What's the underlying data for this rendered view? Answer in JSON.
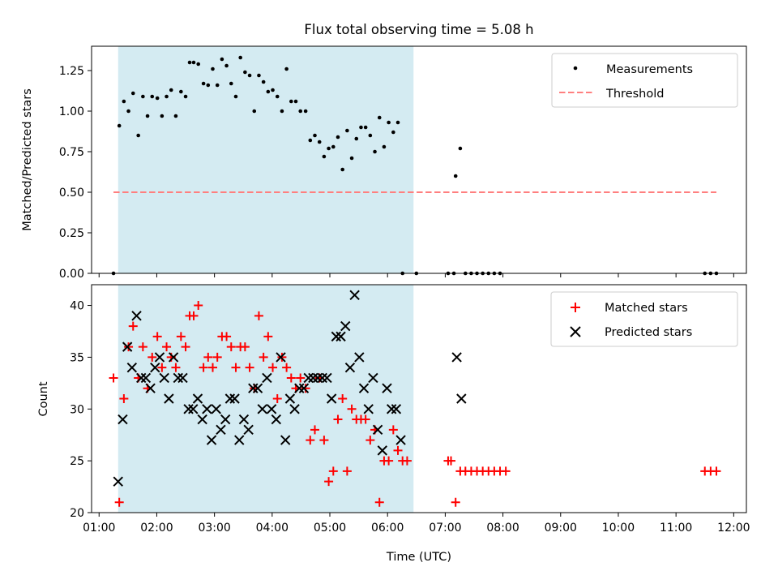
{
  "title": "Flux total observing time = 5.08 h",
  "colors": {
    "band": "#add8e6",
    "measure": "#000000",
    "threshold": "#ff7f7f",
    "matched": "#ff0000",
    "predicted": "#000000"
  },
  "chart_data": [
    {
      "type": "scatter",
      "ylabel": "Matched/Predicted stars",
      "xlim": [
        0.87,
        12.22
      ],
      "ylim": [
        0.0,
        1.4
      ],
      "yticks": [
        0.0,
        0.25,
        0.5,
        0.75,
        1.0,
        1.25
      ],
      "ytick_labels": [
        "0.00",
        "0.25",
        "0.50",
        "0.75",
        "1.00",
        "1.25"
      ],
      "band": [
        1.33,
        6.45
      ],
      "legend": {
        "position": "top-right",
        "entries": [
          "Measurements",
          "Threshold"
        ]
      },
      "threshold": {
        "name": "Threshold",
        "y": 0.5,
        "x_range": [
          1.25,
          11.7
        ]
      },
      "series": [
        {
          "name": "Measurements",
          "points": [
            [
              1.25,
              0.0
            ],
            [
              1.35,
              0.91
            ],
            [
              1.43,
              1.06
            ],
            [
              1.51,
              1.0
            ],
            [
              1.59,
              1.11
            ],
            [
              1.68,
              0.85
            ],
            [
              1.76,
              1.09
            ],
            [
              1.84,
              0.97
            ],
            [
              1.92,
              1.09
            ],
            [
              2.01,
              1.08
            ],
            [
              2.09,
              0.97
            ],
            [
              2.17,
              1.09
            ],
            [
              2.25,
              1.13
            ],
            [
              2.33,
              0.97
            ],
            [
              2.42,
              1.12
            ],
            [
              2.5,
              1.09
            ],
            [
              2.57,
              1.3
            ],
            [
              2.64,
              1.3
            ],
            [
              2.72,
              1.29
            ],
            [
              2.81,
              1.17
            ],
            [
              2.89,
              1.16
            ],
            [
              2.97,
              1.26
            ],
            [
              3.05,
              1.16
            ],
            [
              3.13,
              1.32
            ],
            [
              3.21,
              1.28
            ],
            [
              3.29,
              1.17
            ],
            [
              3.37,
              1.09
            ],
            [
              3.45,
              1.33
            ],
            [
              3.53,
              1.24
            ],
            [
              3.61,
              1.22
            ],
            [
              3.69,
              1.0
            ],
            [
              3.77,
              1.22
            ],
            [
              3.85,
              1.18
            ],
            [
              3.93,
              1.12
            ],
            [
              4.01,
              1.13
            ],
            [
              4.09,
              1.09
            ],
            [
              4.17,
              1.0
            ],
            [
              4.25,
              1.26
            ],
            [
              4.33,
              1.06
            ],
            [
              4.41,
              1.06
            ],
            [
              4.49,
              1.0
            ],
            [
              4.58,
              1.0
            ],
            [
              4.66,
              0.82
            ],
            [
              4.74,
              0.85
            ],
            [
              4.82,
              0.81
            ],
            [
              4.9,
              0.72
            ],
            [
              4.98,
              0.77
            ],
            [
              5.06,
              0.78
            ],
            [
              5.14,
              0.84
            ],
            [
              5.22,
              0.64
            ],
            [
              5.3,
              0.88
            ],
            [
              5.38,
              0.71
            ],
            [
              5.46,
              0.83
            ],
            [
              5.54,
              0.9
            ],
            [
              5.62,
              0.9
            ],
            [
              5.7,
              0.85
            ],
            [
              5.78,
              0.75
            ],
            [
              5.86,
              0.96
            ],
            [
              5.94,
              0.78
            ],
            [
              6.02,
              0.93
            ],
            [
              6.1,
              0.87
            ],
            [
              6.18,
              0.93
            ],
            [
              6.26,
              0.0
            ],
            [
              6.5,
              0.0
            ],
            [
              7.05,
              0.0
            ],
            [
              7.15,
              0.0
            ],
            [
              7.18,
              0.6
            ],
            [
              7.26,
              0.77
            ],
            [
              7.35,
              0.0
            ],
            [
              7.45,
              0.0
            ],
            [
              7.55,
              0.0
            ],
            [
              7.65,
              0.0
            ],
            [
              7.75,
              0.0
            ],
            [
              7.85,
              0.0
            ],
            [
              7.95,
              0.0
            ],
            [
              11.5,
              0.0
            ],
            [
              11.6,
              0.0
            ],
            [
              11.7,
              0.0
            ]
          ]
        }
      ]
    },
    {
      "type": "scatter",
      "xlabel": "Time (UTC)",
      "ylabel": "Count",
      "xlim": [
        0.87,
        12.22
      ],
      "ylim": [
        20,
        42
      ],
      "yticks": [
        20,
        25,
        30,
        35,
        40
      ],
      "xticks": [
        1,
        2,
        3,
        4,
        5,
        6,
        7,
        8,
        9,
        10,
        11,
        12
      ],
      "xtick_labels": [
        "01:00",
        "02:00",
        "03:00",
        "04:00",
        "05:00",
        "06:00",
        "07:00",
        "08:00",
        "09:00",
        "10:00",
        "11:00",
        "12:00"
      ],
      "band": [
        1.33,
        6.45
      ],
      "legend": {
        "position": "top-right",
        "entries": [
          "Matched stars",
          "Predicted stars"
        ]
      },
      "series": [
        {
          "name": "Matched stars",
          "marker": "plus",
          "points": [
            [
              1.25,
              33
            ],
            [
              1.35,
              21
            ],
            [
              1.43,
              31
            ],
            [
              1.51,
              36
            ],
            [
              1.59,
              38
            ],
            [
              1.68,
              33
            ],
            [
              1.76,
              36
            ],
            [
              1.84,
              32
            ],
            [
              1.92,
              35
            ],
            [
              2.01,
              37
            ],
            [
              2.09,
              34
            ],
            [
              2.17,
              36
            ],
            [
              2.25,
              35
            ],
            [
              2.33,
              34
            ],
            [
              2.42,
              37
            ],
            [
              2.5,
              36
            ],
            [
              2.57,
              39
            ],
            [
              2.64,
              39
            ],
            [
              2.72,
              40
            ],
            [
              2.81,
              34
            ],
            [
              2.89,
              35
            ],
            [
              2.97,
              34
            ],
            [
              3.05,
              35
            ],
            [
              3.13,
              37
            ],
            [
              3.21,
              37
            ],
            [
              3.29,
              36
            ],
            [
              3.37,
              34
            ],
            [
              3.45,
              36
            ],
            [
              3.53,
              36
            ],
            [
              3.61,
              34
            ],
            [
              3.69,
              32
            ],
            [
              3.77,
              39
            ],
            [
              3.85,
              35
            ],
            [
              3.93,
              37
            ],
            [
              4.01,
              34
            ],
            [
              4.09,
              31
            ],
            [
              4.17,
              35
            ],
            [
              4.25,
              34
            ],
            [
              4.33,
              33
            ],
            [
              4.41,
              32
            ],
            [
              4.49,
              33
            ],
            [
              4.58,
              32
            ],
            [
              4.66,
              27
            ],
            [
              4.74,
              28
            ],
            [
              4.82,
              33
            ],
            [
              4.9,
              27
            ],
            [
              4.98,
              23
            ],
            [
              5.06,
              24
            ],
            [
              5.14,
              29
            ],
            [
              5.22,
              31
            ],
            [
              5.3,
              24
            ],
            [
              5.38,
              30
            ],
            [
              5.46,
              29
            ],
            [
              5.54,
              29
            ],
            [
              5.62,
              29
            ],
            [
              5.7,
              27
            ],
            [
              5.78,
              28
            ],
            [
              5.86,
              21
            ],
            [
              5.94,
              25
            ],
            [
              6.02,
              25
            ],
            [
              6.1,
              28
            ],
            [
              6.18,
              26
            ],
            [
              6.26,
              25
            ],
            [
              6.34,
              25
            ],
            [
              7.05,
              25
            ],
            [
              7.1,
              25
            ],
            [
              7.18,
              21
            ],
            [
              7.26,
              24
            ],
            [
              7.35,
              24
            ],
            [
              7.45,
              24
            ],
            [
              7.55,
              24
            ],
            [
              7.65,
              24
            ],
            [
              7.75,
              24
            ],
            [
              7.85,
              24
            ],
            [
              7.95,
              24
            ],
            [
              8.05,
              24
            ],
            [
              11.5,
              24
            ],
            [
              11.6,
              24
            ],
            [
              11.7,
              24
            ]
          ]
        },
        {
          "name": "Predicted stars",
          "marker": "x",
          "points": [
            [
              1.33,
              23
            ],
            [
              1.41,
              29
            ],
            [
              1.49,
              36
            ],
            [
              1.57,
              34
            ],
            [
              1.65,
              39
            ],
            [
              1.73,
              33
            ],
            [
              1.81,
              33
            ],
            [
              1.89,
              32
            ],
            [
              1.97,
              34
            ],
            [
              2.05,
              35
            ],
            [
              2.13,
              33
            ],
            [
              2.21,
              31
            ],
            [
              2.29,
              35
            ],
            [
              2.37,
              33
            ],
            [
              2.45,
              33
            ],
            [
              2.55,
              30
            ],
            [
              2.63,
              30
            ],
            [
              2.71,
              31
            ],
            [
              2.79,
              29
            ],
            [
              2.87,
              30
            ],
            [
              2.95,
              27
            ],
            [
              3.03,
              30
            ],
            [
              3.11,
              28
            ],
            [
              3.19,
              29
            ],
            [
              3.27,
              31
            ],
            [
              3.35,
              31
            ],
            [
              3.43,
              27
            ],
            [
              3.51,
              29
            ],
            [
              3.59,
              28
            ],
            [
              3.67,
              32
            ],
            [
              3.75,
              32
            ],
            [
              3.83,
              30
            ],
            [
              3.91,
              33
            ],
            [
              3.99,
              30
            ],
            [
              4.07,
              29
            ],
            [
              4.15,
              35
            ],
            [
              4.23,
              27
            ],
            [
              4.31,
              31
            ],
            [
              4.39,
              30
            ],
            [
              4.47,
              32
            ],
            [
              4.55,
              32
            ],
            [
              4.63,
              33
            ],
            [
              4.71,
              33
            ],
            [
              4.79,
              33
            ],
            [
              4.87,
              33
            ],
            [
              4.95,
              33
            ],
            [
              5.03,
              31
            ],
            [
              5.11,
              37
            ],
            [
              5.19,
              37
            ],
            [
              5.27,
              38
            ],
            [
              5.35,
              34
            ],
            [
              5.43,
              41
            ],
            [
              5.51,
              35
            ],
            [
              5.59,
              32
            ],
            [
              5.67,
              30
            ],
            [
              5.75,
              33
            ],
            [
              5.83,
              28
            ],
            [
              5.91,
              26
            ],
            [
              5.99,
              32
            ],
            [
              6.07,
              30
            ],
            [
              6.15,
              30
            ],
            [
              6.23,
              27
            ],
            [
              7.2,
              35
            ],
            [
              7.28,
              31
            ]
          ]
        }
      ]
    }
  ]
}
